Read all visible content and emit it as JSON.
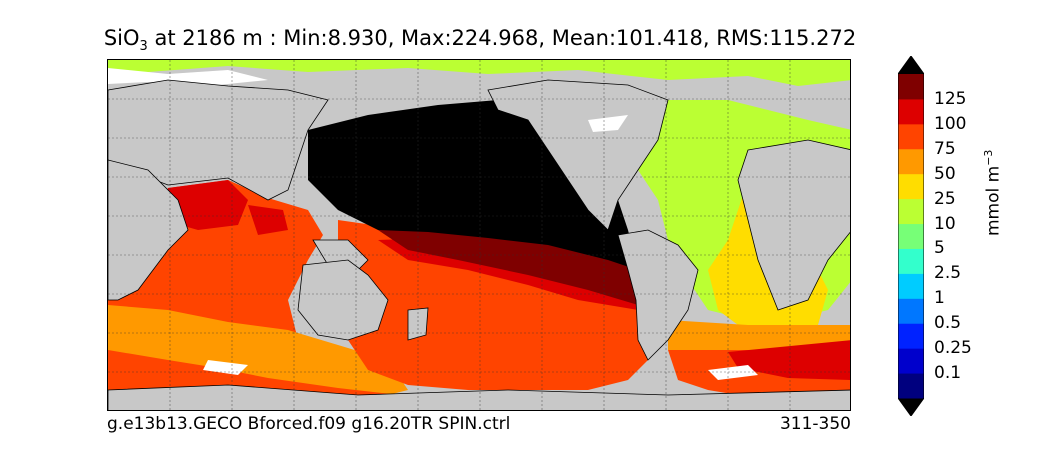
{
  "title": {
    "variable_base": "SiO",
    "variable_sub": "3",
    "rest": " at 2186 m : Min:8.930, Max:224.968, Mean:101.418, RMS:115.272"
  },
  "footer": {
    "case_name": "g.e13b13.GECO Bforced.f09 g16.20TR SPIN.ctrl",
    "years": "311-350"
  },
  "colorbar": {
    "unit_base": "mmol m",
    "unit_exp": "−3",
    "levels": [
      "0.1",
      "0.25",
      "0.5",
      "1",
      "2.5",
      "5",
      "10",
      "25",
      "50",
      "75",
      "100",
      "125"
    ],
    "colors": [
      "#00007f",
      "#0000cc",
      "#0022ff",
      "#0077ff",
      "#00ccff",
      "#33ffcc",
      "#77ff77",
      "#bbff33",
      "#ffdd00",
      "#ff9900",
      "#ff4400",
      "#dd0000",
      "#7f0000"
    ],
    "over_color": "#000000",
    "under_color": "#000000"
  },
  "map_colors": {
    "land": "#c8c8c8",
    "no_data": "#ffffff",
    "over_range": "#000000"
  }
}
